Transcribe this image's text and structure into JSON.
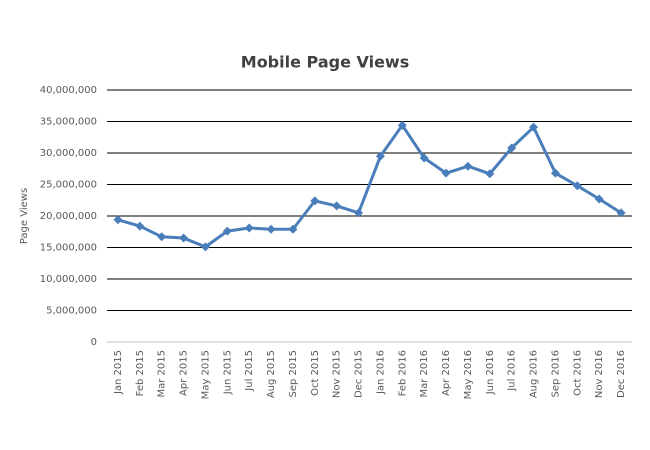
{
  "chart_data": {
    "type": "line",
    "title": "Mobile Page Views",
    "y_label": "Page Views",
    "categories": [
      "Jan 2015",
      "Feb 2015",
      "Mar 2015",
      "Apr 2015",
      "May 2015",
      "Jun 2015",
      "Jul 2015",
      "Aug 2015",
      "Sep 2015",
      "Oct 2015",
      "Nov 2015",
      "Dec 2015",
      "Jan 2016",
      "Feb 2016",
      "Mar 2016",
      "Apr 2016",
      "May 2016",
      "Jun 2016",
      "Jul 2016",
      "Aug 2016",
      "Sep 2016",
      "Oct 2016",
      "Nov 2016",
      "Dec 2016"
    ],
    "values": [
      19400000,
      18400000,
      16700000,
      16500000,
      15100000,
      17600000,
      18100000,
      17900000,
      17900000,
      22400000,
      21600000,
      20500000,
      29500000,
      34400000,
      29200000,
      26800000,
      27900000,
      26700000,
      30800000,
      34100000,
      26800000,
      24800000,
      22700000,
      20500000
    ],
    "color": "#4a7ebb",
    "ylim": [
      0,
      40000000
    ],
    "yticks": [
      0,
      {
        "value": 5000000,
        "label": "5,000,000"
      },
      {
        "value": 10000000,
        "label": "10,000,000"
      },
      {
        "value": 15000000,
        "label": "15,000,000"
      },
      {
        "value": 20000000,
        "label": "20,000,000"
      },
      {
        "value": 25000000,
        "label": "25,000,000"
      },
      {
        "value": 30000000,
        "label": "30,000,000"
      },
      {
        "value": 35000000,
        "label": "35,000,000"
      },
      {
        "value": 40000000,
        "label": "40,000,000"
      }
    ],
    "grid": true
  }
}
